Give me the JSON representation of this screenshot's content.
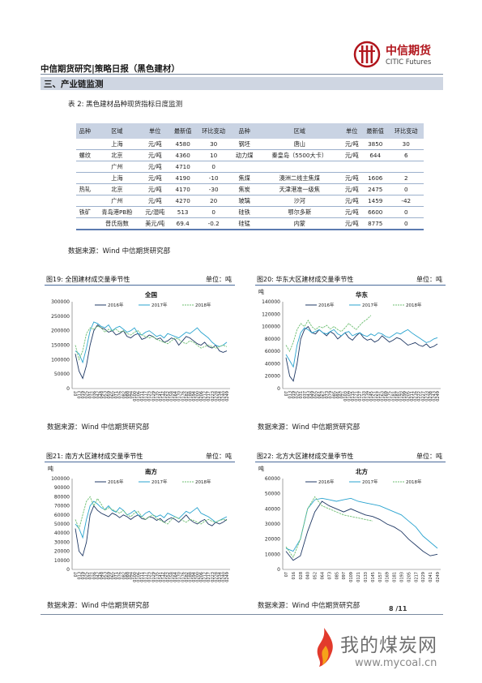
{
  "header": {
    "title": "中信期货研究|策略日报（黑色建材）",
    "logo_cn": "中信期货",
    "logo_en": "CITIC Futures"
  },
  "section": "三、产业链监测",
  "table": {
    "caption": "表 2: 黑色建材品种现货指标日度监测",
    "headers": [
      "品种",
      "区域",
      "单位",
      "最新值",
      "环比变动",
      "品种",
      "区域",
      "单位",
      "最新值",
      "环比变动"
    ],
    "rows": [
      [
        "",
        "上海",
        "元/吨",
        "4580",
        "30",
        "钢坯",
        "唐山",
        "元/吨",
        "3850",
        "30"
      ],
      [
        "螺纹",
        "北京",
        "元/吨",
        "4360",
        "10",
        "动力煤",
        "秦皇岛（5500大卡）",
        "元/吨",
        "644",
        "6"
      ],
      [
        "",
        "广州",
        "元/吨",
        "4710",
        "0",
        "",
        "",
        "",
        "",
        ""
      ],
      [
        "",
        "上海",
        "元/吨",
        "4190",
        "-10",
        "焦煤",
        "澳洲二线主焦煤",
        "元/吨",
        "1606",
        "2"
      ],
      [
        "热轧",
        "北京",
        "元/吨",
        "4170",
        "-30",
        "焦炭",
        "天津港准一级焦",
        "元/吨",
        "2475",
        "0"
      ],
      [
        "",
        "广州",
        "元/吨",
        "4270",
        "20",
        "玻璃",
        "沙河",
        "元/吨",
        "1459",
        "-42"
      ],
      [
        "铁矿",
        "青岛港PB粉",
        "元/湿吨",
        "513",
        "0",
        "硅铁",
        "鄂尔多斯",
        "元/吨",
        "6600",
        "0"
      ],
      [
        "",
        "普氏指数",
        "美元/吨",
        "69.4",
        "-0.2",
        "硅锰",
        "内蒙",
        "元/吨",
        "8775",
        "0"
      ]
    ]
  },
  "source_text": "数据来源：Wind  中信期货研究部",
  "unit_text": "单位：吨",
  "series_names": [
    "2016年",
    "2017年",
    "2018年"
  ],
  "colors": {
    "s2016": "#1f3864",
    "s2017": "#29a3cf",
    "s2018": "#6fbf73",
    "accent": "#b1151c"
  },
  "chart_data": [
    {
      "type": "line",
      "title": "图19: 全国建材成交量季节性",
      "inner_title": "全国",
      "ylabel": "",
      "ylim": [
        0,
        300000
      ],
      "yticks": [
        "0",
        "50000",
        "100000",
        "150000",
        "200000",
        "250000",
        "300000"
      ],
      "x": [
        "07",
        "013",
        "019",
        "025",
        "031",
        "036",
        "042",
        "048",
        "053",
        "059",
        "065",
        "071",
        "076",
        "082",
        "088",
        "094",
        "0100",
        "0106",
        "0111",
        "0117",
        "0123",
        "0129",
        "0135",
        "0141",
        "0146",
        "0152",
        "0158",
        "0164",
        "0170",
        "0176",
        "0182",
        "0188",
        "0194",
        "0200",
        "0206",
        "0212",
        "0217",
        "0223",
        "0228",
        "0234",
        "0240",
        "0249"
      ],
      "series": [
        {
          "name": "2016年",
          "values": [
            120000,
            60000,
            35000,
            80000,
            150000,
            200000,
            220000,
            210000,
            205000,
            195000,
            200000,
            185000,
            190000,
            200000,
            180000,
            175000,
            185000,
            190000,
            170000,
            175000,
            185000,
            180000,
            170000,
            175000,
            160000,
            165000,
            175000,
            170000,
            150000,
            165000,
            180000,
            175000,
            165000,
            155000,
            150000,
            160000,
            145000,
            140000,
            150000,
            130000,
            125000,
            130000
          ]
        },
        {
          "name": "2017年",
          "values": [
            130000,
            120000,
            90000,
            140000,
            200000,
            230000,
            225000,
            215000,
            210000,
            220000,
            200000,
            210000,
            215000,
            205000,
            195000,
            200000,
            210000,
            190000,
            185000,
            195000,
            200000,
            190000,
            180000,
            185000,
            175000,
            190000,
            185000,
            180000,
            175000,
            185000,
            195000,
            190000,
            200000,
            210000,
            195000,
            185000,
            175000,
            160000,
            150000,
            145000,
            150000,
            160000
          ]
        },
        {
          "name": "2018年",
          "values": [
            150000,
            100000,
            130000,
            190000,
            210000,
            205000,
            215000,
            210000,
            195000,
            205000,
            200000,
            205000,
            195000,
            200000,
            190000,
            185000,
            195000,
            200000,
            185000,
            180000,
            175000,
            180000,
            170000,
            165000,
            160000,
            155000,
            165000,
            175000,
            170000,
            160000,
            155000,
            165000,
            160000,
            150000,
            140000,
            145000,
            150000,
            145000,
            140000,
            145000,
            150000,
            145000
          ]
        }
      ]
    },
    {
      "type": "line",
      "title": "图20: 华东大区建材成交量季节性",
      "inner_title": "华东",
      "ylabel": "吨",
      "ylim": [
        0,
        140000
      ],
      "yticks": [
        "0",
        "20000",
        "40000",
        "60000",
        "80000",
        "100000",
        "120000",
        "140000"
      ],
      "x": [
        "07",
        "013",
        "019",
        "025",
        "031",
        "037",
        "043",
        "049",
        "055",
        "061",
        "067",
        "073",
        "079",
        "085",
        "091",
        "097",
        "0103",
        "0109",
        "0115",
        "0121",
        "0127",
        "0133",
        "0139",
        "0145",
        "0151",
        "0157",
        "0163",
        "0169",
        "0175",
        "0181",
        "0187",
        "0193",
        "0199",
        "0205",
        "0211",
        "0216",
        "0222",
        "0227",
        "0233",
        "0238",
        "0243",
        "0249"
      ],
      "series": [
        {
          "name": "2016年",
          "values": [
            50000,
            20000,
            12000,
            40000,
            80000,
            95000,
            100000,
            90000,
            88000,
            95000,
            90000,
            85000,
            92000,
            88000,
            80000,
            85000,
            90000,
            82000,
            78000,
            85000,
            90000,
            82000,
            78000,
            80000,
            75000,
            78000,
            85000,
            80000,
            75000,
            78000,
            82000,
            80000,
            75000,
            70000,
            72000,
            74000,
            70000,
            68000,
            72000,
            66000,
            68000,
            72000
          ]
        },
        {
          "name": "2017年",
          "values": [
            55000,
            45000,
            35000,
            70000,
            90000,
            98000,
            95000,
            90000,
            92000,
            95000,
            90000,
            88000,
            92000,
            95000,
            88000,
            85000,
            90000,
            92000,
            85000,
            88000,
            90000,
            86000,
            84000,
            88000,
            85000,
            90000,
            88000,
            84000,
            82000,
            86000,
            90000,
            88000,
            92000,
            95000,
            90000,
            86000,
            82000,
            78000,
            74000,
            76000,
            80000,
            82000
          ]
        },
        {
          "name": "2018年",
          "values": [
            70000,
            60000,
            75000,
            95000,
            105000,
            100000,
            110000,
            100000,
            95000,
            100000,
            98000,
            102000,
            96000,
            100000,
            95000,
            92000,
            98000,
            105000,
            100000,
            95000,
            102000,
            108000,
            112000,
            118000,
            null,
            null,
            null,
            null,
            null,
            null,
            null,
            null,
            null,
            null,
            null,
            null,
            null,
            null,
            null,
            null,
            null,
            null
          ]
        }
      ]
    },
    {
      "type": "line",
      "title": "图21: 南方大区建材成交量季节性",
      "inner_title": "南方",
      "ylabel": "吨",
      "ylim": [
        0,
        100000
      ],
      "yticks": [
        "0",
        "10000",
        "20000",
        "30000",
        "40000",
        "50000",
        "60000",
        "70000",
        "80000",
        "90000",
        "100000"
      ],
      "x": [
        "07",
        "013",
        "019",
        "025",
        "031",
        "036",
        "042",
        "048",
        "053",
        "059",
        "065",
        "071",
        "076",
        "082",
        "088",
        "094",
        "0100",
        "0106",
        "0111",
        "0117",
        "0123",
        "0129",
        "0135",
        "0141",
        "0146",
        "0152",
        "0158",
        "0164",
        "0170",
        "0176",
        "0182",
        "0188",
        "0194",
        "0200",
        "0206",
        "0212",
        "0217",
        "0223",
        "0228",
        "0234",
        "0240",
        "0249"
      ],
      "series": [
        {
          "name": "2016年",
          "values": [
            45000,
            20000,
            15000,
            30000,
            60000,
            70000,
            65000,
            62000,
            60000,
            58000,
            62000,
            60000,
            57000,
            60000,
            58000,
            55000,
            58000,
            60000,
            56000,
            55000,
            58000,
            57000,
            54000,
            56000,
            52000,
            55000,
            57000,
            55000,
            52000,
            56000,
            60000,
            55000,
            52000,
            50000,
            53000,
            55000,
            50000,
            48000,
            52000,
            50000,
            52000,
            55000
          ]
        },
        {
          "name": "2017年",
          "values": [
            50000,
            45000,
            35000,
            55000,
            70000,
            75000,
            72000,
            68000,
            66000,
            70000,
            65000,
            63000,
            68000,
            65000,
            60000,
            62000,
            65000,
            60000,
            58000,
            62000,
            64000,
            60000,
            58000,
            60000,
            57000,
            62000,
            60000,
            58000,
            56000,
            60000,
            64000,
            62000,
            65000,
            68000,
            62000,
            60000,
            58000,
            55000,
            52000,
            54000,
            56000,
            58000
          ]
        },
        {
          "name": "2018年",
          "values": [
            55000,
            45000,
            60000,
            75000,
            80000,
            70000,
            78000,
            72000,
            65000,
            68000,
            66000,
            64000,
            62000,
            65000,
            60000,
            58000,
            62000,
            64000,
            58000,
            55000,
            58000,
            60000,
            56000,
            54000,
            52000,
            50000,
            55000,
            58000,
            56000,
            54000,
            52000,
            55000,
            54000,
            52000,
            50000,
            53000,
            55000,
            53000,
            52000,
            54000,
            55000,
            54000
          ]
        }
      ]
    },
    {
      "type": "line",
      "title": "图22: 北方大区建材成交量季节性",
      "inner_title": "北方",
      "ylabel": "吨",
      "ylim": [
        0,
        60000
      ],
      "yticks": [
        "0",
        "10000",
        "20000",
        "30000",
        "40000",
        "50000",
        "60000"
      ],
      "x": [
        "07",
        "016",
        "028",
        "040",
        "052",
        "064",
        "073",
        "085",
        "097",
        "0109",
        "0121",
        "0133",
        "0145",
        "0157",
        "0169",
        "0181",
        "0193",
        "0205",
        "0217",
        "0229",
        "0241",
        "0249"
      ],
      "series": [
        {
          "name": "2016年",
          "values": [
            12000,
            6000,
            9000,
            25000,
            38000,
            45000,
            42000,
            40000,
            38000,
            40000,
            38000,
            36000,
            35000,
            33000,
            30000,
            28000,
            25000,
            20000,
            16000,
            12000,
            9000,
            10000
          ]
        },
        {
          "name": "2017年",
          "values": [
            14000,
            12000,
            20000,
            40000,
            46000,
            47000,
            46000,
            45000,
            46000,
            47000,
            45000,
            44000,
            43000,
            42000,
            40000,
            38000,
            36000,
            32000,
            28000,
            22000,
            18000,
            14000
          ]
        },
        {
          "name": "2018年",
          "values": [
            15000,
            8000,
            20000,
            40000,
            48000,
            42000,
            40000,
            38000,
            36000,
            35000,
            34000,
            33000,
            32000,
            null,
            null,
            null,
            null,
            null,
            null,
            null,
            null,
            null
          ]
        }
      ]
    }
  ],
  "page_number": "8 /11",
  "watermark": {
    "cn": "我的煤炭网",
    "en": "www.mycoal.cn"
  }
}
